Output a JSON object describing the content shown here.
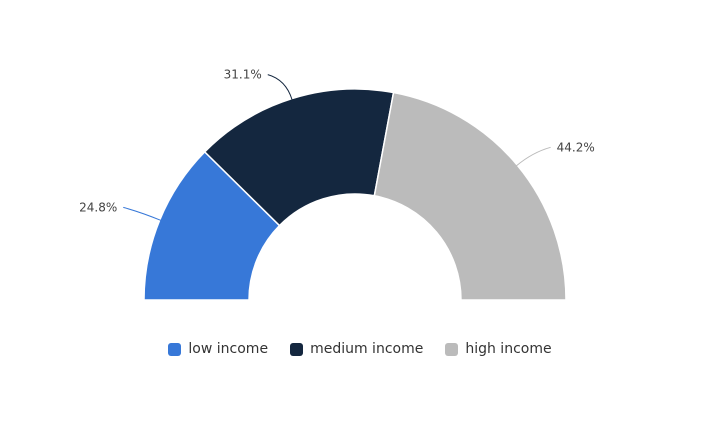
{
  "chart_data": {
    "type": "pie",
    "variant": "semi-donut",
    "categories": [
      "low income",
      "medium income",
      "high income"
    ],
    "values": [
      24.8,
      31.1,
      44.2
    ],
    "data_labels": [
      "24.8%",
      "31.1%",
      "44.2%"
    ],
    "colors": [
      "#3778d8",
      "#14273f",
      "#bbbbbb"
    ],
    "title": "",
    "legend_position": "bottom-center",
    "unit": "%"
  }
}
